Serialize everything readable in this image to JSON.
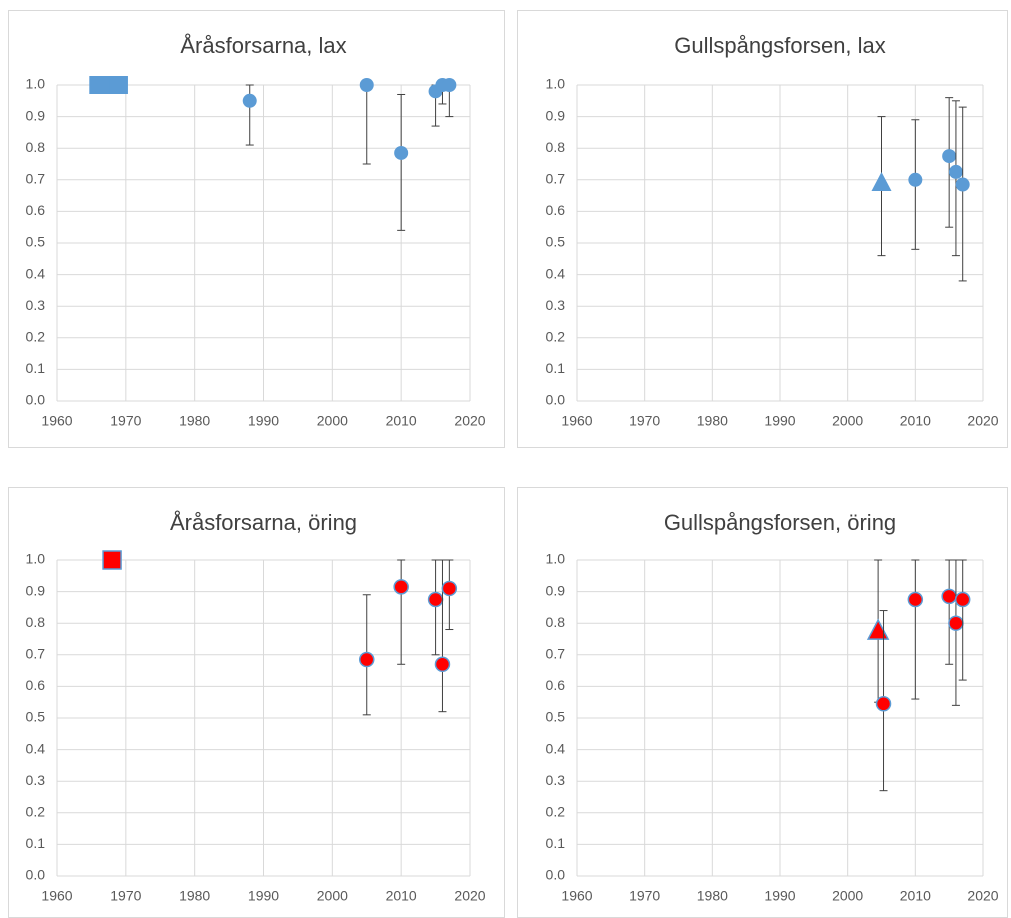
{
  "chart_data": [
    {
      "type": "scatter",
      "title": "Åråsforsarna, lax",
      "xlim": [
        1960,
        2020
      ],
      "xticks": [
        1960,
        1970,
        1980,
        1990,
        2000,
        2010,
        2020
      ],
      "ylim": [
        0,
        1
      ],
      "yticks": [
        {
          "value": 0,
          "label": "0.0"
        },
        0.1,
        0.2,
        0.3,
        0.4,
        0.5,
        0.6,
        0.7,
        0.8,
        0.9,
        {
          "value": 1,
          "label": "1.0"
        }
      ],
      "grid": true,
      "series": [
        {
          "marker": "square",
          "color": "#5b9bd5",
          "x": [
            1966,
            1968,
            1969
          ],
          "values": [
            1.0,
            1.0,
            1.0
          ]
        },
        {
          "marker": "circle",
          "color": "#5b9bd5",
          "x": [
            1988,
            2005,
            2010,
            2015,
            2016,
            2017
          ],
          "values": [
            0.95,
            1.0,
            0.785,
            0.98,
            1.0,
            1.0
          ],
          "error_minus": [
            0.14,
            0.25,
            0.245,
            0.11,
            0.06,
            0.1
          ],
          "error_plus": [
            0.05,
            0,
            0.185,
            0.02,
            0,
            0
          ]
        }
      ]
    },
    {
      "type": "scatter",
      "title": "Gullspångsforsen, lax",
      "xlim": [
        1960,
        2020
      ],
      "xticks": [
        1960,
        1970,
        1980,
        1990,
        2000,
        2010,
        2020
      ],
      "ylim": [
        0,
        1
      ],
      "yticks": [
        {
          "value": 0,
          "label": "0.0"
        },
        0.1,
        0.2,
        0.3,
        0.4,
        0.5,
        0.6,
        0.7,
        0.8,
        0.9,
        {
          "value": 1,
          "label": "1.0"
        }
      ],
      "grid": true,
      "series": [
        {
          "marker": "triangle",
          "color": "#5b9bd5",
          "x": [
            2005
          ],
          "values": [
            0.69
          ],
          "error_minus": [
            0.23
          ],
          "error_plus": [
            0.21
          ]
        },
        {
          "marker": "circle",
          "color": "#5b9bd5",
          "x": [
            2010,
            2015,
            2016,
            2017
          ],
          "values": [
            0.7,
            0.775,
            0.725,
            0.685
          ],
          "error_minus": [
            0.22,
            0.225,
            0.265,
            0.305
          ],
          "error_plus": [
            0.19,
            0.185,
            0.225,
            0.245
          ]
        }
      ]
    },
    {
      "type": "scatter",
      "title": "Åråsforsarna, öring",
      "xlim": [
        1960,
        2020
      ],
      "xticks": [
        1960,
        1970,
        1980,
        1990,
        2000,
        2010,
        2020
      ],
      "ylim": [
        0,
        1
      ],
      "yticks": [
        {
          "value": 0,
          "label": "0.0"
        },
        0.1,
        0.2,
        0.3,
        0.4,
        0.5,
        0.6,
        0.7,
        0.8,
        0.9,
        {
          "value": 1,
          "label": "1.0"
        }
      ],
      "grid": true,
      "series": [
        {
          "marker": "square",
          "color": "#ff0000",
          "edge": "#5b9bd5",
          "x": [
            1968
          ],
          "values": [
            1.0
          ]
        },
        {
          "marker": "circle",
          "color": "#ff0000",
          "edge": "#5b9bd5",
          "x": [
            2005,
            2010,
            2015,
            2016,
            2017
          ],
          "values": [
            0.685,
            0.915,
            0.875,
            0.67,
            0.91
          ],
          "error_minus": [
            0.175,
            0.245,
            0.175,
            0.15,
            0.13
          ],
          "error_plus": [
            0.205,
            0.085,
            0.125,
            0.33,
            0.09
          ]
        }
      ]
    },
    {
      "type": "scatter",
      "title": "Gullspångsforsen, öring",
      "xlim": [
        1960,
        2020
      ],
      "xticks": [
        1960,
        1970,
        1980,
        1990,
        2000,
        2010,
        2020
      ],
      "ylim": [
        0,
        1
      ],
      "yticks": [
        {
          "value": 0,
          "label": "0.0"
        },
        0.1,
        0.2,
        0.3,
        0.4,
        0.5,
        0.6,
        0.7,
        0.8,
        0.9,
        {
          "value": 1,
          "label": "1.0"
        }
      ],
      "grid": true,
      "series": [
        {
          "marker": "triangle",
          "color": "#ff0000",
          "edge": "#5b9bd5",
          "x": [
            2004.5
          ],
          "values": [
            0.775
          ],
          "error_minus": [
            0.225
          ],
          "error_plus": [
            0.225
          ]
        },
        {
          "marker": "circle",
          "color": "#ff0000",
          "edge": "#5b9bd5",
          "x": [
            2005.3,
            2010,
            2015,
            2016,
            2017
          ],
          "values": [
            0.545,
            0.875,
            0.885,
            0.8,
            0.875
          ],
          "error_minus": [
            0.275,
            0.315,
            0.215,
            0.26,
            0.255
          ],
          "error_plus": [
            0.295,
            0.125,
            0.115,
            0.2,
            0.125
          ]
        }
      ]
    }
  ]
}
